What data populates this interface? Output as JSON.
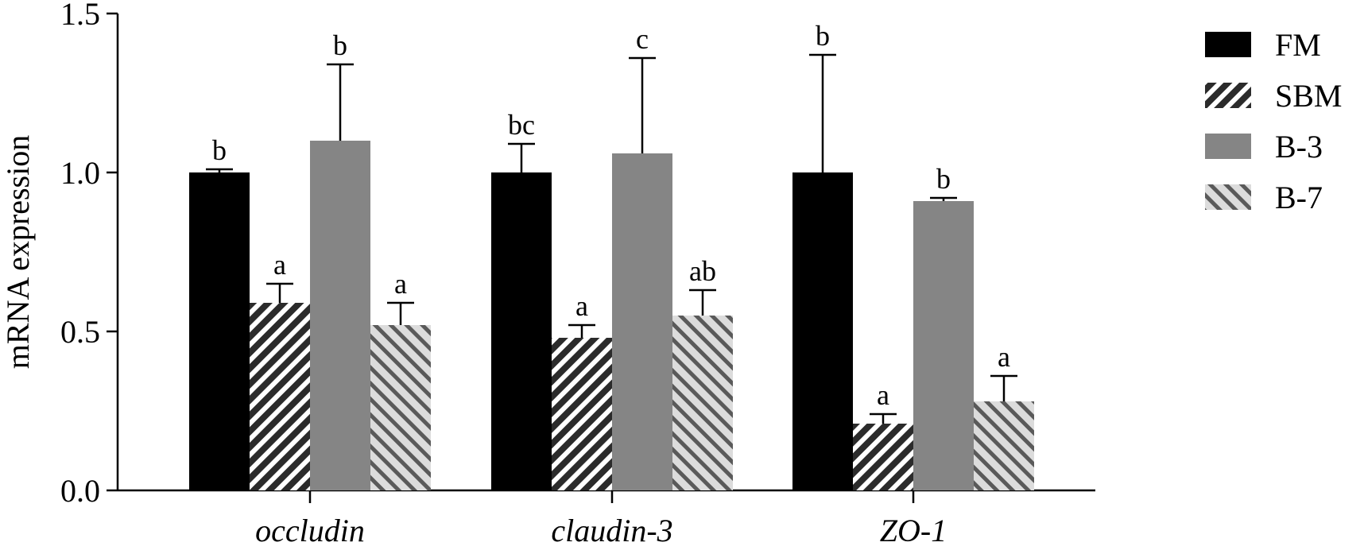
{
  "chart_data": {
    "type": "bar",
    "ylabel": "mRNA expression",
    "ylim": [
      0,
      1.5
    ],
    "yticks": [
      "0.0",
      "0.5",
      "1.0",
      "1.5"
    ],
    "categories": [
      "occludin",
      "claudin-3",
      "ZO-1"
    ],
    "grid": false,
    "legend_position": "right",
    "series": [
      {
        "name": "FM",
        "fill": "solid-black",
        "color": "#000000",
        "values": [
          1.0,
          1.0,
          1.0
        ],
        "errors": [
          0.01,
          0.09,
          0.37
        ],
        "labels": [
          "b",
          "bc",
          "b"
        ]
      },
      {
        "name": "SBM",
        "fill": "hatch-forward",
        "color": "#2b2b2b",
        "values": [
          0.59,
          0.48,
          0.21
        ],
        "errors": [
          0.06,
          0.04,
          0.03
        ],
        "labels": [
          "a",
          "a",
          "a"
        ]
      },
      {
        "name": "B-3",
        "fill": "solid-gray",
        "color": "#858585",
        "values": [
          1.1,
          1.06,
          0.91
        ],
        "errors": [
          0.24,
          0.3,
          0.01
        ],
        "labels": [
          "b",
          "c",
          "b"
        ]
      },
      {
        "name": "B-7",
        "fill": "hatch-back",
        "color": "#5a5a5a",
        "values": [
          0.52,
          0.55,
          0.28
        ],
        "errors": [
          0.07,
          0.08,
          0.08
        ],
        "labels": [
          "a",
          "ab",
          "a"
        ]
      }
    ]
  }
}
